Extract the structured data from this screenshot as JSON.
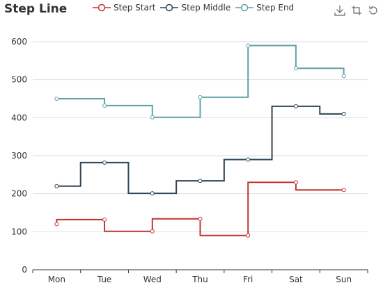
{
  "chart_data": {
    "type": "line",
    "subtype": "step",
    "title": "Step Line",
    "categories": [
      "Mon",
      "Tue",
      "Wed",
      "Thu",
      "Fri",
      "Sat",
      "Sun"
    ],
    "ylim": [
      0,
      600
    ],
    "yticks": [
      0,
      100,
      200,
      300,
      400,
      500,
      600
    ],
    "grid": true,
    "legend_position": "top",
    "series": [
      {
        "name": "Step Start",
        "step": "start",
        "color": "#c23531",
        "values": [
          120,
          132,
          101,
          134,
          90,
          230,
          210
        ]
      },
      {
        "name": "Step Middle",
        "step": "middle",
        "color": "#2f4554",
        "values": [
          220,
          282,
          201,
          234,
          290,
          430,
          410
        ]
      },
      {
        "name": "Step End",
        "step": "end",
        "color": "#61a0a8",
        "values": [
          450,
          432,
          401,
          454,
          590,
          530,
          510
        ]
      }
    ]
  },
  "toolbox": {
    "items": [
      "download-icon",
      "crop-icon",
      "restore-icon"
    ]
  }
}
